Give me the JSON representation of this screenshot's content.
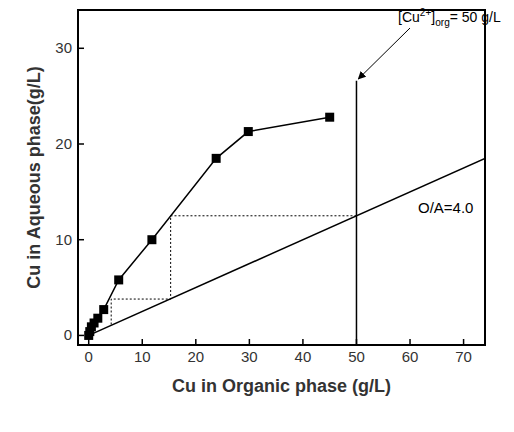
{
  "chart_data": {
    "type": "line",
    "x_label": "Cu in Organic phase (g/L)",
    "y_label": "Cu in Aqueous phase(g/L)",
    "xlim": [
      -2,
      74
    ],
    "ylim": [
      -1,
      34
    ],
    "xticks": [
      0,
      10,
      20,
      30,
      40,
      50,
      60,
      70
    ],
    "yticks": [
      0,
      10,
      20,
      30
    ],
    "grid": false,
    "series": [
      {
        "type": "line",
        "marker": "square",
        "color": "#000000",
        "line_style": "solid",
        "x": [
          0,
          0.2,
          0.5,
          1,
          1.7,
          2.8,
          5.6,
          11.8,
          23.8,
          29.8,
          45
        ],
        "values": [
          0,
          0.4,
          0.9,
          1.3,
          1.8,
          2.7,
          5.8,
          10,
          18.5,
          21.3,
          22.8
        ]
      },
      {
        "type": "line",
        "marker": "none",
        "color": "#000000",
        "line_style": "solid",
        "x": [
          0,
          74
        ],
        "values": [
          0,
          18.5
        ]
      },
      {
        "type": "line",
        "marker": "none",
        "color": "#000000",
        "line_style": "dotted",
        "x": [
          50,
          15.3,
          15.3,
          4.2,
          4.2
        ],
        "values": [
          12.5,
          12.5,
          3.8,
          3.8,
          1.1
        ]
      },
      {
        "type": "line",
        "marker": "none",
        "color": "#000000",
        "line_style": "solid",
        "x": [
          50,
          50
        ],
        "values": [
          -1,
          26.6
        ]
      }
    ],
    "annotations": [
      {
        "parts": [
          {
            "text": "[Cu"
          },
          {
            "text": "2+",
            "sup": true
          },
          {
            "text": "]"
          },
          {
            "text": "org",
            "sub": true
          },
          {
            "text": "= 50 g/L"
          }
        ]
      },
      {
        "parts": [
          {
            "text": "O/A=4.0"
          }
        ]
      }
    ]
  }
}
